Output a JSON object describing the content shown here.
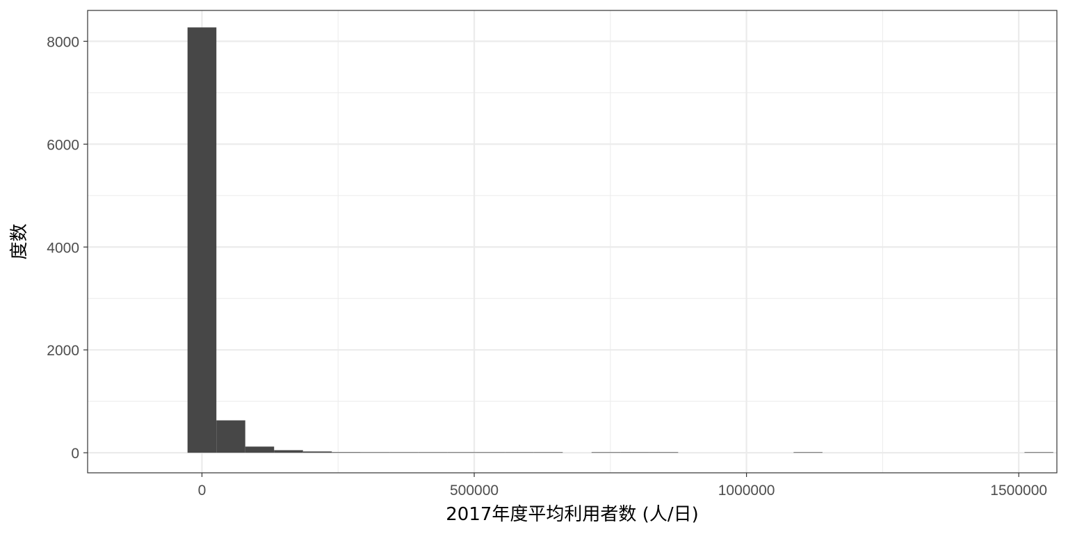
{
  "chart_data": {
    "type": "bar",
    "subtype": "histogram",
    "xlabel": "2017年度平均利用者数 (人/日)",
    "ylabel": "度数",
    "xlim": [
      -210000,
      1570000
    ],
    "ylim": [
      -390,
      8600
    ],
    "x_ticks": [
      0,
      500000,
      1000000,
      1500000
    ],
    "x_tick_labels": [
      "0",
      "500000",
      "1000000",
      "1500000"
    ],
    "y_ticks": [
      0,
      2000,
      4000,
      6000,
      8000
    ],
    "y_tick_labels": [
      "0",
      "2000",
      "4000",
      "6000",
      "8000"
    ],
    "bin_width": 53000,
    "bins": [
      {
        "x0": -26500,
        "x1": 26500,
        "count": 8270
      },
      {
        "x0": 26500,
        "x1": 79500,
        "count": 630
      },
      {
        "x0": 79500,
        "x1": 132500,
        "count": 120
      },
      {
        "x0": 132500,
        "x1": 185500,
        "count": 50
      },
      {
        "x0": 185500,
        "x1": 238500,
        "count": 25
      },
      {
        "x0": 238500,
        "x1": 291500,
        "count": 12
      },
      {
        "x0": 291500,
        "x1": 344500,
        "count": 8
      },
      {
        "x0": 344500,
        "x1": 397500,
        "count": 3
      },
      {
        "x0": 397500,
        "x1": 450500,
        "count": 3
      },
      {
        "x0": 450500,
        "x1": 503500,
        "count": 2
      },
      {
        "x0": 503500,
        "x1": 556500,
        "count": 2
      },
      {
        "x0": 556500,
        "x1": 609500,
        "count": 1
      },
      {
        "x0": 609500,
        "x1": 662500,
        "count": 1
      },
      {
        "x0": 662500,
        "x1": 715500,
        "count": 0
      },
      {
        "x0": 715500,
        "x1": 768500,
        "count": 1
      },
      {
        "x0": 768500,
        "x1": 821500,
        "count": 1
      },
      {
        "x0": 821500,
        "x1": 874500,
        "count": 1
      },
      {
        "x0": 874500,
        "x1": 927500,
        "count": 0
      },
      {
        "x0": 927500,
        "x1": 980500,
        "count": 0
      },
      {
        "x0": 980500,
        "x1": 1033500,
        "count": 0
      },
      {
        "x0": 1033500,
        "x1": 1086500,
        "count": 0
      },
      {
        "x0": 1086500,
        "x1": 1139500,
        "count": 1
      },
      {
        "x0": 1139500,
        "x1": 1192500,
        "count": 0
      },
      {
        "x0": 1192500,
        "x1": 1245500,
        "count": 0
      },
      {
        "x0": 1245500,
        "x1": 1298500,
        "count": 0
      },
      {
        "x0": 1298500,
        "x1": 1351500,
        "count": 0
      },
      {
        "x0": 1351500,
        "x1": 1404500,
        "count": 0
      },
      {
        "x0": 1404500,
        "x1": 1457500,
        "count": 0
      },
      {
        "x0": 1457500,
        "x1": 1510500,
        "count": 0
      },
      {
        "x0": 1510500,
        "x1": 1563500,
        "count": 1
      }
    ],
    "grid": true,
    "legend": "none",
    "colors": {
      "bar": "#474747",
      "grid_major": "#ebebeb",
      "grid_minor": "#f5f5f5",
      "panel_border": "#333333",
      "tick_text": "#4d4d4d",
      "title_text": "#000000"
    }
  }
}
